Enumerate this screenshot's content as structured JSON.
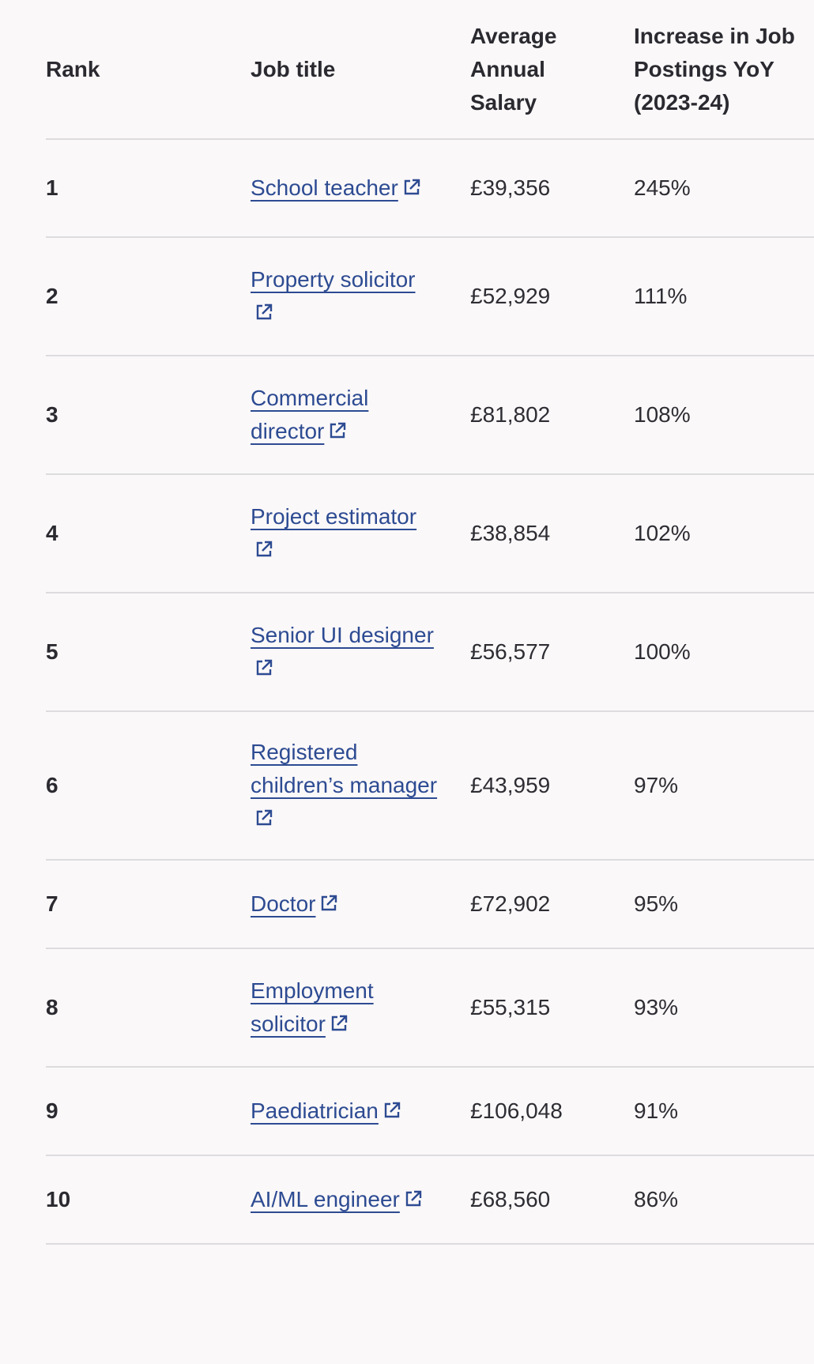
{
  "table": {
    "headers": {
      "rank": "Rank",
      "job_title": "Job title",
      "salary": "Average Annual Salary",
      "increase": "Increase in Job Postings YoY (2023-24)"
    },
    "rows": [
      {
        "rank": "1",
        "title": "School teacher",
        "salary": "£39,356",
        "increase": "245%"
      },
      {
        "rank": "2",
        "title": "Property solicitor",
        "salary": "£52,929",
        "increase": "111%"
      },
      {
        "rank": "3",
        "title": "Commercial director",
        "salary": "£81,802",
        "increase": "108%"
      },
      {
        "rank": "4",
        "title": "Project estimator",
        "salary": "£38,854",
        "increase": "102%"
      },
      {
        "rank": "5",
        "title": "Senior UI designer",
        "salary": "£56,577",
        "increase": "100%"
      },
      {
        "rank": "6",
        "title": "Registered children’s manager",
        "salary": "£43,959",
        "increase": "97%"
      },
      {
        "rank": "7",
        "title": "Doctor",
        "salary": "£72,902",
        "increase": "95%"
      },
      {
        "rank": "8",
        "title": "Employment solicitor",
        "salary": "£55,315",
        "increase": "93%"
      },
      {
        "rank": "9",
        "title": "Paediatrician",
        "salary": "£106,048",
        "increase": "91%"
      },
      {
        "rank": "10",
        "title": "AI/ML engineer",
        "salary": "£68,560",
        "increase": "86%"
      }
    ]
  },
  "icons": {
    "job_link_icon": "external-link-icon"
  },
  "colors": {
    "link": "#2d4b92",
    "text": "#2a2a30",
    "divider": "#dcdcdf",
    "background": "#fbf8f9"
  }
}
